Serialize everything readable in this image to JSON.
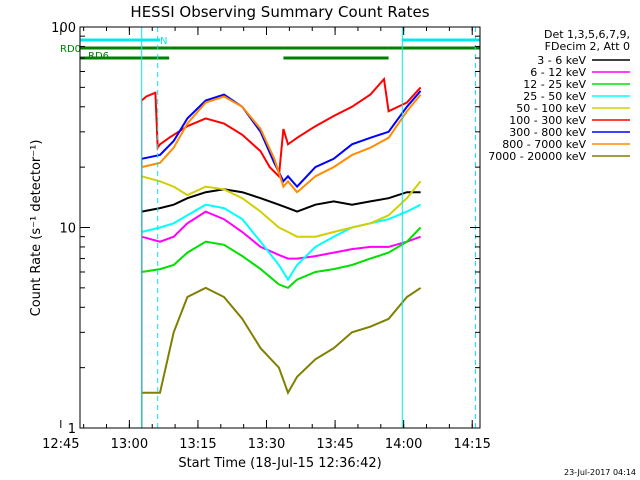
{
  "chart_data": {
    "type": "line",
    "title": "HESSI Observing Summary Count Rates",
    "xlabel": "Start Time (18-Jul-15 12:36:42)",
    "ylabel": "Count Rate (s⁻¹ detector⁻¹)",
    "ylog": true,
    "ylim": [
      1,
      100
    ],
    "xlim_minutes": [
      12.5,
      100
    ],
    "x_ticks": [
      "12:45",
      "13:00",
      "13:15",
      "13:30",
      "13:45",
      "14:00",
      "14:15"
    ],
    "y_ticks": [
      "1",
      "10",
      "100"
    ],
    "legend_header": [
      "Det 1,3,5,6,7,9,",
      "FDecim 2, Att 0"
    ],
    "legend_position": "right",
    "flags": [
      {
        "name": "RD0",
        "color": "#008000",
        "segments": [
          [
            12.5,
            32
          ],
          [
            32,
            57
          ],
          [
            57,
            80
          ],
          [
            80,
            100
          ]
        ]
      },
      {
        "name": "RD6",
        "color": "#008000",
        "segments": [
          [
            12.5,
            32
          ],
          [
            57,
            80
          ]
        ]
      },
      {
        "name": "N",
        "color": "#00e8e8",
        "segments": [
          [
            12.5,
            30
          ],
          [
            83,
            100
          ]
        ]
      }
    ],
    "vlines_solid": [
      26,
      83
    ],
    "vlines_dashed": [
      29.5,
      99
    ],
    "series": [
      {
        "name": "3 - 6 keV",
        "color": "#000000",
        "x": [
          26,
          30,
          33,
          36,
          40,
          44,
          48,
          52,
          56,
          58,
          60,
          64,
          68,
          72,
          76,
          80,
          84,
          87
        ],
        "y": [
          12,
          12.5,
          13,
          14,
          15,
          15.5,
          15,
          14,
          13,
          12.5,
          12,
          13,
          13.5,
          13,
          13.5,
          14,
          15,
          15
        ]
      },
      {
        "name": "6 - 12 keV",
        "color": "#ff00ff",
        "x": [
          26,
          30,
          33,
          36,
          40,
          44,
          48,
          52,
          56,
          58,
          60,
          64,
          68,
          72,
          76,
          80,
          84,
          87
        ],
        "y": [
          9,
          8.5,
          9,
          10.5,
          12,
          11,
          9.5,
          8,
          7.3,
          7,
          7,
          7.2,
          7.5,
          7.8,
          8,
          8,
          8.5,
          9
        ]
      },
      {
        "name": "12 - 25 keV",
        "color": "#00e000",
        "x": [
          26,
          30,
          33,
          36,
          40,
          44,
          48,
          52,
          56,
          58,
          60,
          64,
          68,
          72,
          76,
          80,
          84,
          87
        ],
        "y": [
          6,
          6.2,
          6.5,
          7.5,
          8.5,
          8.2,
          7.2,
          6.2,
          5.2,
          5,
          5.5,
          6,
          6.2,
          6.5,
          7,
          7.5,
          8.5,
          10
        ]
      },
      {
        "name": "25 - 50 keV",
        "color": "#00ffff",
        "x": [
          26,
          30,
          33,
          36,
          40,
          44,
          48,
          52,
          56,
          58,
          60,
          64,
          68,
          72,
          76,
          80,
          84,
          87
        ],
        "y": [
          9.5,
          10,
          10.5,
          11.5,
          13,
          12.5,
          11,
          8.5,
          6.5,
          5.5,
          6.5,
          8,
          9,
          10,
          10.5,
          11,
          12,
          13
        ]
      },
      {
        "name": "50 - 100 keV",
        "color": "#d0d000",
        "x": [
          26,
          30,
          33,
          36,
          40,
          44,
          48,
          52,
          56,
          58,
          60,
          64,
          68,
          72,
          76,
          80,
          84,
          87
        ],
        "y": [
          18,
          17,
          16,
          14.5,
          16,
          15.5,
          14,
          12,
          10,
          9.5,
          9,
          9,
          9.5,
          10,
          10.5,
          11.5,
          14,
          17
        ]
      },
      {
        "name": "100 - 300 keV",
        "color": "#ff0000",
        "x": [
          26,
          27,
          29,
          29.5,
          30,
          32,
          36,
          40,
          44,
          48,
          52,
          54,
          56,
          57,
          58,
          60,
          64,
          68,
          72,
          76,
          79,
          80,
          84,
          87
        ],
        "y": [
          43,
          45,
          47,
          25,
          26,
          28,
          32,
          35,
          33,
          29,
          24,
          20,
          18,
          31,
          26,
          28,
          32,
          36,
          40,
          46,
          55,
          38,
          42,
          50
        ]
      },
      {
        "name": "300 - 800 keV",
        "color": "#0000ff",
        "x": [
          26,
          30,
          33,
          36,
          40,
          44,
          48,
          52,
          55,
          57,
          58,
          60,
          64,
          68,
          72,
          76,
          80,
          84,
          87
        ],
        "y": [
          22,
          23,
          27,
          35,
          43,
          46,
          40,
          30,
          21,
          17,
          18,
          16,
          20,
          22,
          26,
          28,
          30,
          40,
          48
        ]
      },
      {
        "name": "800 - 7000 keV",
        "color": "#ff8c00",
        "x": [
          26,
          30,
          33,
          36,
          40,
          44,
          48,
          52,
          55,
          57,
          58,
          60,
          64,
          68,
          72,
          76,
          80,
          84,
          87
        ],
        "y": [
          20,
          21,
          25,
          33,
          42,
          45,
          40,
          31,
          22,
          16,
          17,
          15,
          18,
          20,
          23,
          25,
          28,
          38,
          46
        ]
      },
      {
        "name": "7000 - 20000 keV",
        "color": "#808000",
        "x": [
          26,
          30,
          33,
          36,
          40,
          44,
          48,
          52,
          56,
          58,
          60,
          64,
          68,
          72,
          76,
          80,
          84,
          87
        ],
        "y": [
          1.5,
          1.5,
          3,
          4.5,
          5,
          4.5,
          3.5,
          2.5,
          2,
          1.5,
          1.8,
          2.2,
          2.5,
          3,
          3.2,
          3.5,
          4.5,
          5
        ]
      }
    ],
    "footer": "23-Jul-2017 04:14"
  }
}
